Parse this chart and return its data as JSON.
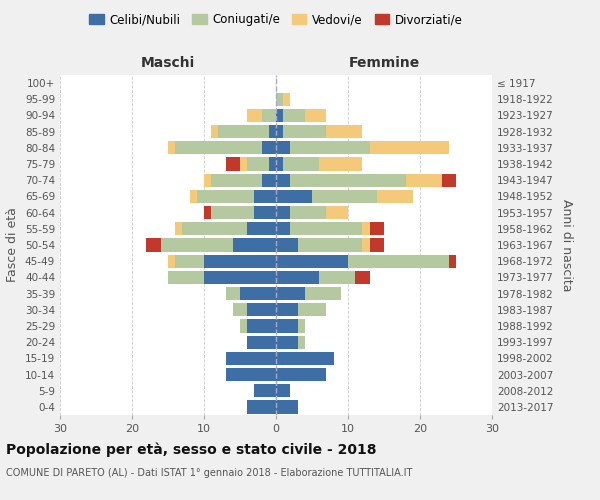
{
  "age_groups": [
    "0-4",
    "5-9",
    "10-14",
    "15-19",
    "20-24",
    "25-29",
    "30-34",
    "35-39",
    "40-44",
    "45-49",
    "50-54",
    "55-59",
    "60-64",
    "65-69",
    "70-74",
    "75-79",
    "80-84",
    "85-89",
    "90-94",
    "95-99",
    "100+"
  ],
  "birth_years": [
    "2013-2017",
    "2008-2012",
    "2003-2007",
    "1998-2002",
    "1993-1997",
    "1988-1992",
    "1983-1987",
    "1978-1982",
    "1973-1977",
    "1968-1972",
    "1963-1967",
    "1958-1962",
    "1953-1957",
    "1948-1952",
    "1943-1947",
    "1938-1942",
    "1933-1937",
    "1928-1932",
    "1923-1927",
    "1918-1922",
    "≤ 1917"
  ],
  "colors": {
    "celibi": "#3d6fa5",
    "coniugati": "#b5c9a0",
    "vedovi": "#f5c97a",
    "divorziati": "#c0392b"
  },
  "maschi": {
    "celibi": [
      4,
      3,
      7,
      7,
      4,
      4,
      4,
      5,
      10,
      10,
      6,
      4,
      3,
      3,
      2,
      1,
      2,
      1,
      0,
      0,
      0
    ],
    "coniugati": [
      0,
      0,
      0,
      0,
      0,
      1,
      2,
      2,
      5,
      4,
      10,
      9,
      6,
      8,
      7,
      3,
      12,
      7,
      2,
      0,
      0
    ],
    "vedovi": [
      0,
      0,
      0,
      0,
      0,
      0,
      0,
      0,
      0,
      1,
      0,
      1,
      0,
      1,
      1,
      1,
      1,
      1,
      2,
      0,
      0
    ],
    "divorziati": [
      0,
      0,
      0,
      0,
      0,
      0,
      0,
      0,
      0,
      0,
      2,
      0,
      1,
      0,
      0,
      2,
      0,
      0,
      0,
      0,
      0
    ]
  },
  "femmine": {
    "celibi": [
      3,
      2,
      7,
      8,
      3,
      3,
      3,
      4,
      6,
      10,
      3,
      2,
      2,
      5,
      2,
      1,
      2,
      1,
      1,
      0,
      0
    ],
    "coniugati": [
      0,
      0,
      0,
      0,
      1,
      1,
      4,
      5,
      5,
      14,
      9,
      10,
      5,
      9,
      16,
      5,
      11,
      6,
      3,
      1,
      0
    ],
    "vedovi": [
      0,
      0,
      0,
      0,
      0,
      0,
      0,
      0,
      0,
      0,
      1,
      1,
      3,
      5,
      5,
      6,
      11,
      5,
      3,
      1,
      0
    ],
    "divorziati": [
      0,
      0,
      0,
      0,
      0,
      0,
      0,
      0,
      2,
      1,
      2,
      2,
      0,
      0,
      2,
      0,
      0,
      0,
      0,
      0,
      0
    ]
  },
  "xlim": 30,
  "title": "Popolazione per età, sesso e stato civile - 2018",
  "subtitle": "COMUNE DI PARETO (AL) - Dati ISTAT 1° gennaio 2018 - Elaborazione TUTTITALIA.IT",
  "ylabel_left": "Fasce di età",
  "ylabel_right": "Anni di nascita",
  "xlabel_maschi": "Maschi",
  "xlabel_femmine": "Femmine",
  "legend_labels": [
    "Celibi/Nubili",
    "Coniugati/e",
    "Vedovi/e",
    "Divorziati/e"
  ],
  "bg_color": "#f0f0f0",
  "plot_bg_color": "#ffffff"
}
